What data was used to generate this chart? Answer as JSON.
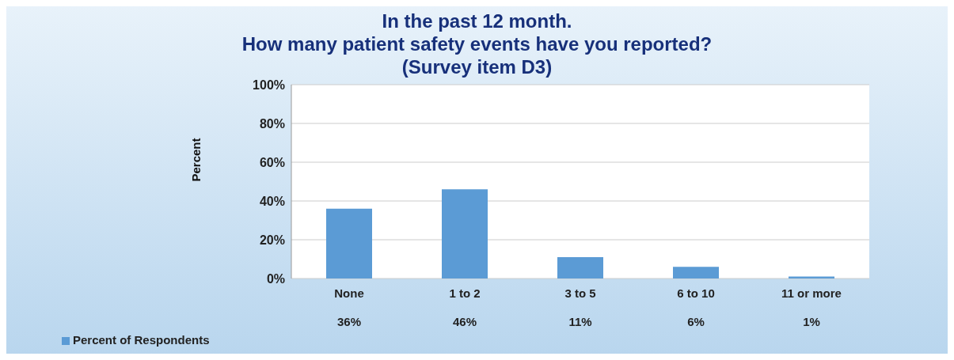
{
  "chart_data": {
    "type": "bar",
    "title": "In the past 12 month.\nHow many patient safety events have you reported?\n(Survey item D3)",
    "ylabel": "Percent",
    "categories": [
      "None",
      "1 to 2",
      "3 to 5",
      "6 to 10",
      "11 or more"
    ],
    "series": [
      {
        "name": "Percent of Respondents",
        "color": "#5b9bd5",
        "values": [
          36,
          46,
          11,
          6,
          1
        ]
      }
    ],
    "value_labels": [
      "36%",
      "46%",
      "11%",
      "6%",
      "1%"
    ],
    "ylim": [
      0,
      100
    ],
    "yticks": [
      {
        "value": 0,
        "label": "0%"
      },
      {
        "value": 20,
        "label": "20%"
      },
      {
        "value": 40,
        "label": "40%"
      },
      {
        "value": 60,
        "label": "60%"
      },
      {
        "value": 80,
        "label": "80%"
      },
      {
        "value": 100,
        "label": "100%"
      }
    ],
    "grid": "y",
    "legend": "bottom left"
  }
}
